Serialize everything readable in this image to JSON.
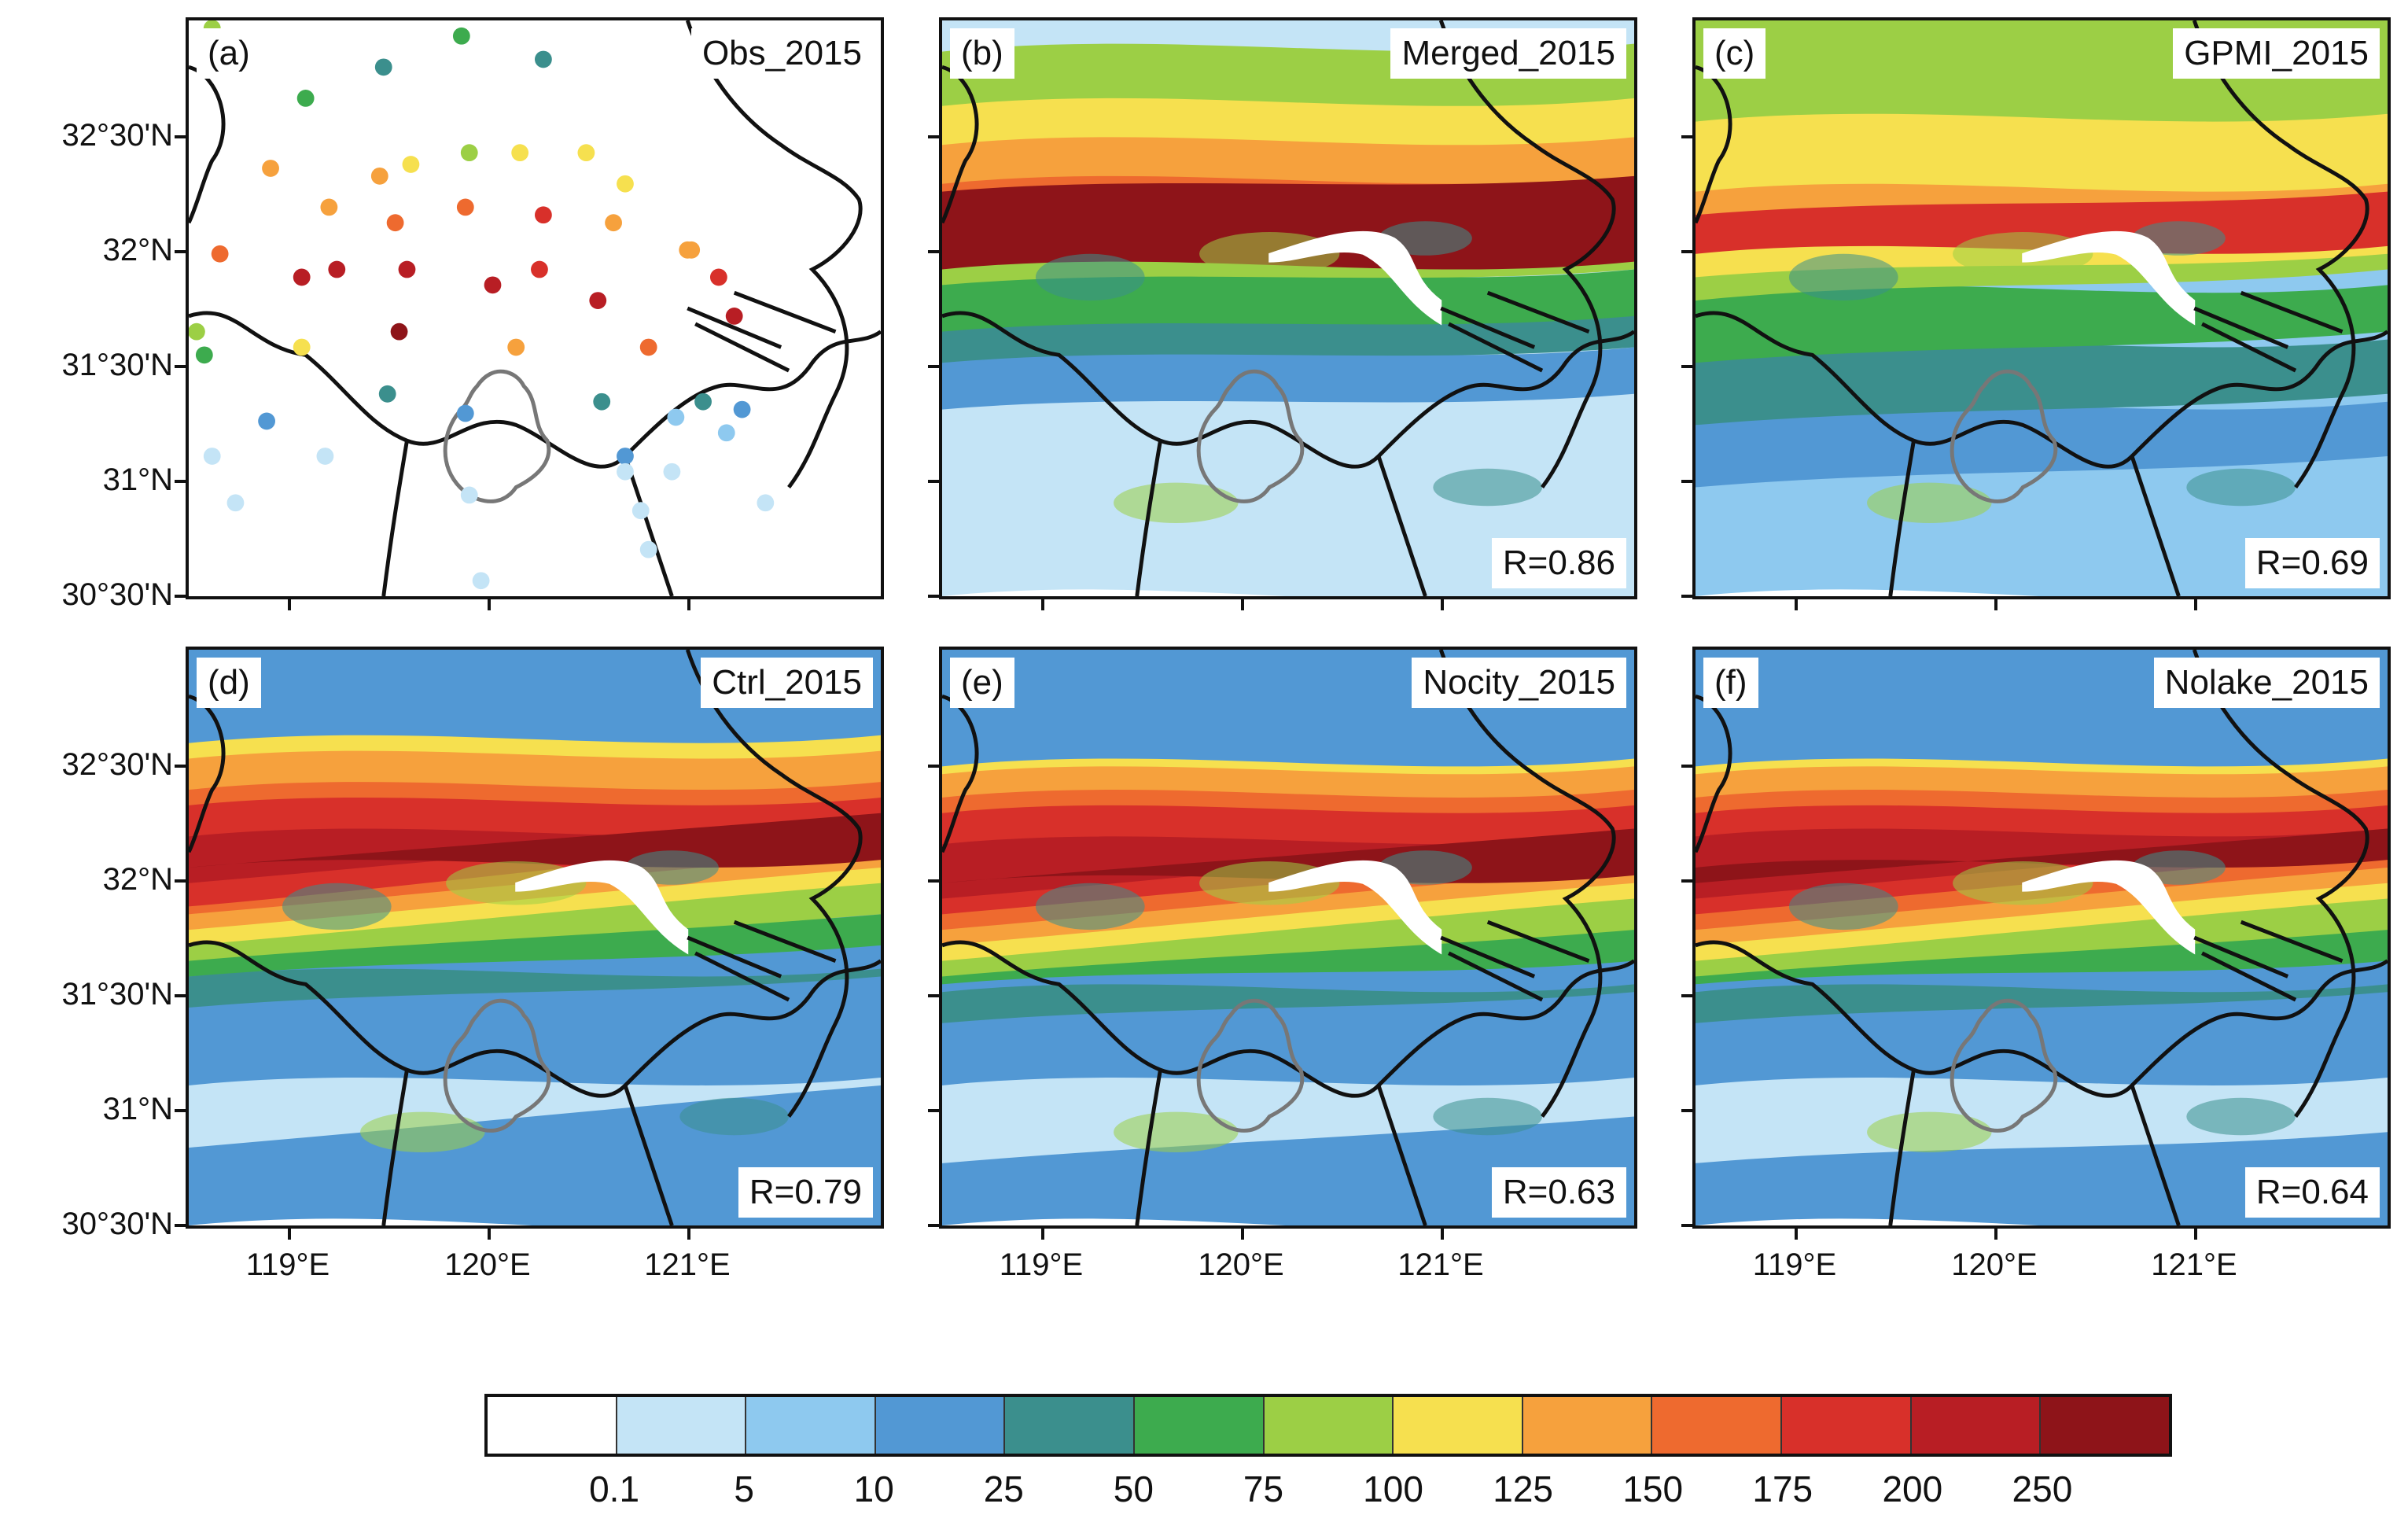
{
  "figure": {
    "panels": [
      {
        "tag": "(a)",
        "title": "Obs_2015",
        "r": null,
        "kind": "obs"
      },
      {
        "tag": "(b)",
        "title": "Merged_2015",
        "r": "R=0.86",
        "kind": "merged"
      },
      {
        "tag": "(c)",
        "title": "GPMI_2015",
        "r": "R=0.69",
        "kind": "gpmi"
      },
      {
        "tag": "(d)",
        "title": "Ctrl_2015",
        "r": "R=0.79",
        "kind": "ctrl"
      },
      {
        "tag": "(e)",
        "title": "Nocity_2015",
        "r": "R=0.63",
        "kind": "nocity"
      },
      {
        "tag": "(f)",
        "title": "Nolake_2015",
        "r": "R=0.64",
        "kind": "nolake"
      }
    ],
    "lat_labels": [
      "32°30'N",
      "32°N",
      "31°30'N",
      "31°N",
      "30°30'N"
    ],
    "lon_labels": [
      "119°E",
      "120°E",
      "121°E"
    ]
  },
  "colorbar": {
    "labels": [
      "0.1",
      "5",
      "10",
      "25",
      "50",
      "75",
      "100",
      "125",
      "150",
      "175",
      "200",
      "250"
    ],
    "colors": [
      "#ffffff",
      "#c4e4f6",
      "#8ec9ef",
      "#5298d4",
      "#3b8f8d",
      "#3dab4e",
      "#9ccf45",
      "#f6e04f",
      "#f6a13d",
      "#ee6a2f",
      "#d8302a",
      "#b81e24",
      "#8e1419"
    ]
  }
}
